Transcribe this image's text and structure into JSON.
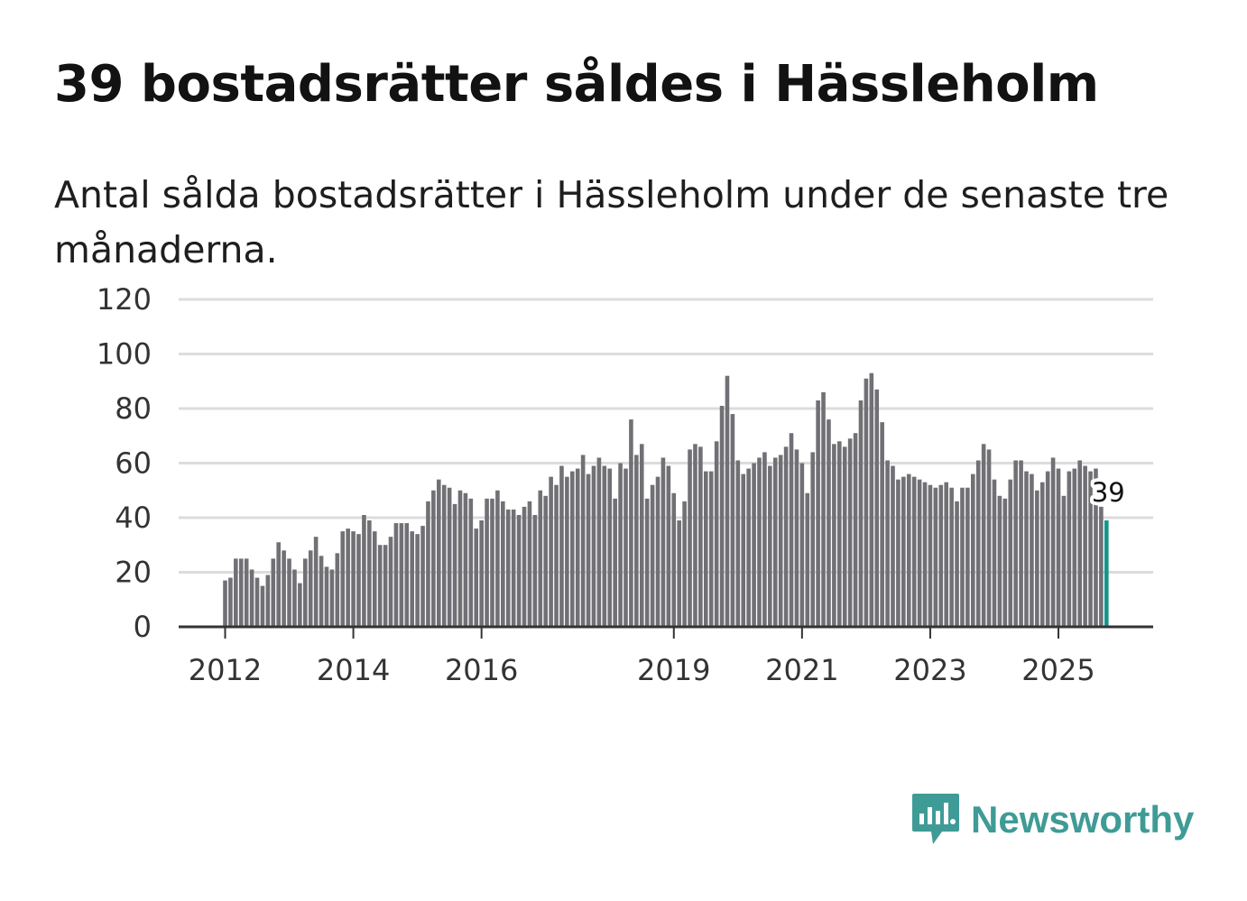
{
  "header": {
    "title": "39 bostadsrätter såldes i Hässleholm",
    "subtitle": "Antal sålda bostadsrätter i Hässleholm under de senaste tre månaderna."
  },
  "brand": {
    "name": "Newsworthy",
    "color": "#3f9b96",
    "icon": "bar-chart-speech-bubble-icon"
  },
  "colors": {
    "bars": "#717075",
    "highlight": "#13958d",
    "grid": "#dcdcdc",
    "axis": "#333333"
  },
  "chart_data": {
    "type": "bar",
    "title": "39 bostadsrätter såldes i Hässleholm",
    "xlabel": "",
    "ylabel": "",
    "ylim": [
      0,
      120
    ],
    "yticks": [
      0,
      20,
      40,
      60,
      80,
      100,
      120
    ],
    "x_start": "2012-01",
    "x_tick_labels": [
      {
        "label": "2012",
        "index": 0
      },
      {
        "label": "2014",
        "index": 24
      },
      {
        "label": "2016",
        "index": 48
      },
      {
        "label": "2019",
        "index": 84
      },
      {
        "label": "2021",
        "index": 108
      },
      {
        "label": "2023",
        "index": 132
      },
      {
        "label": "2025",
        "index": 156
      }
    ],
    "values": [
      17,
      18,
      25,
      25,
      25,
      21,
      18,
      15,
      19,
      25,
      31,
      28,
      25,
      21,
      16,
      25,
      28,
      33,
      26,
      22,
      21,
      27,
      35,
      36,
      35,
      34,
      41,
      39,
      35,
      30,
      30,
      33,
      38,
      38,
      38,
      35,
      34,
      37,
      46,
      50,
      54,
      52,
      51,
      45,
      50,
      49,
      47,
      36,
      39,
      47,
      47,
      50,
      46,
      43,
      43,
      41,
      44,
      46,
      41,
      50,
      48,
      55,
      52,
      59,
      55,
      57,
      58,
      63,
      56,
      59,
      62,
      59,
      58,
      47,
      60,
      58,
      76,
      63,
      67,
      47,
      52,
      55,
      62,
      59,
      49,
      39,
      46,
      65,
      67,
      66,
      57,
      57,
      68,
      81,
      92,
      78,
      61,
      56,
      58,
      60,
      62,
      64,
      59,
      62,
      63,
      66,
      71,
      65,
      60,
      49,
      64,
      83,
      86,
      76,
      67,
      68,
      66,
      69,
      71,
      83,
      91,
      93,
      87,
      75,
      61,
      59,
      54,
      55,
      56,
      55,
      54,
      53,
      52,
      51,
      52,
      53,
      51,
      46,
      51,
      51,
      56,
      61,
      67,
      65,
      54,
      48,
      47,
      54,
      61,
      61,
      57,
      56,
      50,
      53,
      57,
      62,
      58,
      48,
      57,
      58,
      61,
      59,
      57,
      58,
      44,
      39
    ],
    "highlight": {
      "index": 165,
      "value": 39,
      "label": "39"
    }
  }
}
